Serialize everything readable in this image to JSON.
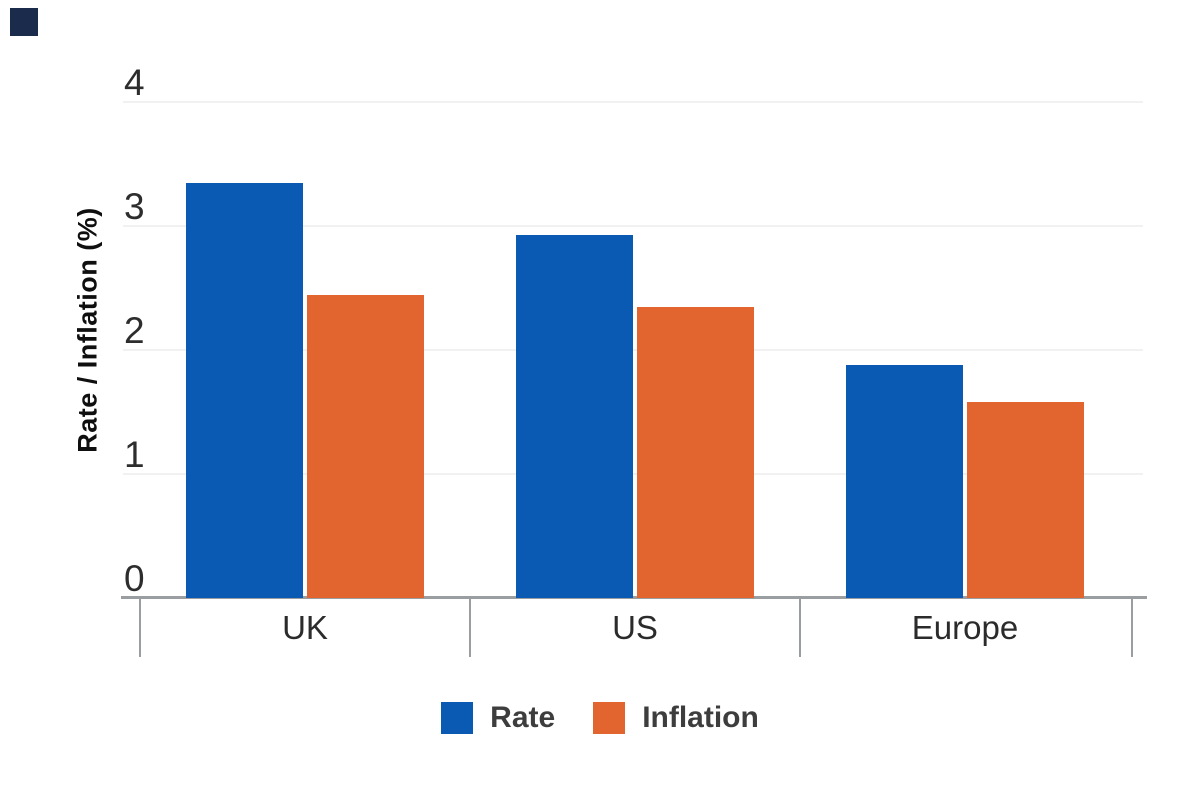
{
  "logo": {
    "color": "#1a2b4c"
  },
  "chart_data": {
    "type": "bar",
    "title": "",
    "categories": [
      "UK",
      "US",
      "Europe"
    ],
    "series": [
      {
        "name": "Rate",
        "color": "#0a5ab4",
        "values": [
          3.35,
          2.93,
          1.88
        ]
      },
      {
        "name": "Inflation",
        "color": "#e2652f",
        "values": [
          2.44,
          2.35,
          1.58
        ]
      }
    ],
    "ylabel": "Rate / Inflation (%)",
    "xlabel": "",
    "yticks": [
      "0",
      "1",
      "2",
      "3",
      "4"
    ],
    "ylim": [
      0,
      4
    ],
    "grid": true,
    "legend_position": "bottom"
  },
  "style_colors": {
    "gridline": "#f1f1f1",
    "axis": "#9b9ea0",
    "y_tick_label": "#2d2d2d",
    "category_label": "#2b2b2b",
    "legend_label": "#3d3d3d",
    "ylabel_text": "#0f0f0f",
    "background": "#ffffff"
  }
}
